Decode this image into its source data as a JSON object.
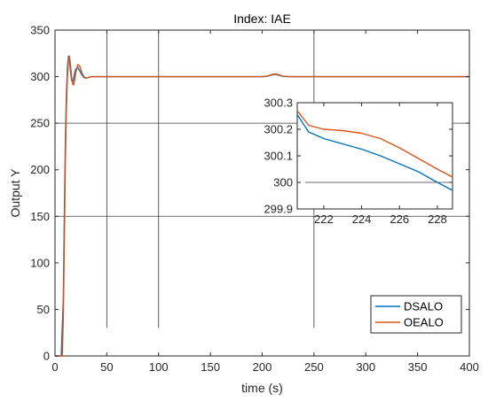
{
  "chart_data": [
    {
      "type": "line",
      "title": "Index: IAE",
      "xlabel": "time (s)",
      "ylabel": "Output Y",
      "xlim": [
        0,
        400
      ],
      "ylim": [
        0,
        350
      ],
      "xticks": [
        0,
        50,
        100,
        150,
        200,
        250,
        300,
        350,
        400
      ],
      "yticks": [
        0,
        50,
        100,
        150,
        200,
        250,
        300,
        350
      ],
      "grid": false,
      "legend": "bottom-right",
      "reference_lines": {
        "horizontal": [
          150,
          250
        ],
        "vertical": [
          50,
          100,
          250
        ],
        "vertical_span": [
          30,
          350
        ]
      },
      "series": [
        {
          "name": "DSALO",
          "color": "#0072BD",
          "x": [
            0,
            6,
            8,
            9,
            10,
            11,
            12,
            13,
            14,
            15,
            16,
            17,
            18,
            19,
            20,
            22,
            24,
            26,
            28,
            30,
            35,
            40,
            50,
            100,
            200,
            205,
            210,
            213,
            216,
            220,
            225,
            230,
            300,
            400
          ],
          "y": [
            0,
            0,
            60,
            150,
            230,
            280,
            310,
            322,
            318,
            305,
            296,
            294,
            298,
            304,
            308,
            310,
            306,
            302,
            299,
            298.5,
            300,
            300,
            300,
            300,
            300,
            300.5,
            302,
            302.5,
            301.5,
            300.3,
            300.05,
            300,
            300,
            300
          ]
        },
        {
          "name": "OEALO",
          "color": "#D95319",
          "x": [
            0,
            7,
            8,
            9,
            10,
            11,
            12,
            13,
            14,
            15,
            16,
            17,
            18,
            19,
            20,
            22,
            24,
            26,
            28,
            30,
            35,
            40,
            50,
            100,
            200,
            205,
            210,
            213,
            216,
            220,
            225,
            230,
            300,
            400
          ],
          "y": [
            0,
            0,
            40,
            120,
            210,
            265,
            300,
            318,
            322,
            312,
            300,
            292,
            291,
            296,
            304,
            313,
            311,
            304,
            300,
            298.5,
            300,
            300,
            300,
            300,
            300,
            300.7,
            302.5,
            303,
            302,
            300.5,
            300.1,
            300,
            300,
            300
          ]
        }
      ]
    },
    {
      "type": "line",
      "title": "",
      "xlim": [
        220.6,
        228.8
      ],
      "ylim": [
        299.9,
        300.3
      ],
      "xticks": [
        222,
        224,
        226,
        228
      ],
      "yticks": [
        299.9,
        300,
        300.1,
        300.2,
        300.3
      ],
      "ytick_labels": [
        "299.9",
        "300",
        "300.1",
        "300.2",
        "300.3"
      ],
      "reference_lines": {
        "horizontal": [
          300
        ]
      },
      "series": [
        {
          "name": "DSALO",
          "color": "#0072BD",
          "x": [
            220.6,
            221.2,
            222,
            223,
            224,
            225,
            226,
            227,
            228,
            228.8
          ],
          "y": [
            300.255,
            300.19,
            300.165,
            300.145,
            300.125,
            300.1,
            300.07,
            300.04,
            300,
            299.97
          ]
        },
        {
          "name": "OEALO",
          "color": "#D95319",
          "x": [
            220.6,
            221.2,
            222,
            223,
            224,
            225,
            226,
            227,
            228,
            228.8
          ],
          "y": [
            300.27,
            300.215,
            300.2,
            300.195,
            300.185,
            300.165,
            300.13,
            300.09,
            300.05,
            300.02
          ]
        }
      ]
    }
  ]
}
